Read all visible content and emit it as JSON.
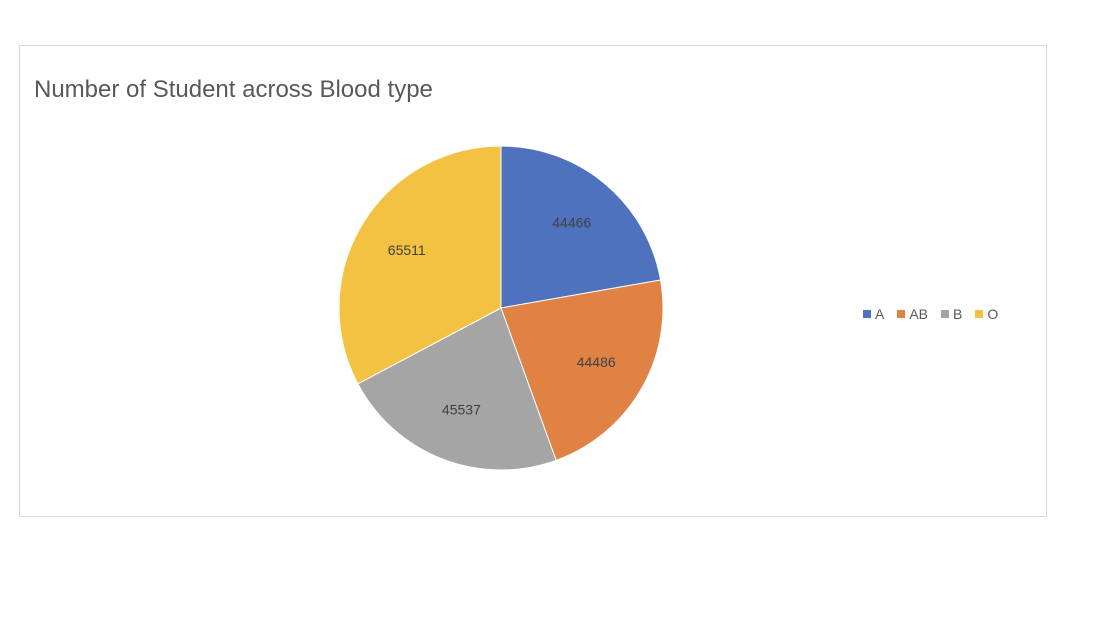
{
  "chart_data": {
    "type": "pie",
    "title": "Number of Student across Blood type",
    "categories": [
      "A",
      "AB",
      "B",
      "O"
    ],
    "values": [
      44466,
      44486,
      45537,
      65511
    ],
    "colors": [
      "#4e72be",
      "#df8244",
      "#a5a5a5",
      "#f4c242"
    ],
    "data_labels": [
      "44466",
      "44486",
      "45537",
      "65511"
    ],
    "legend_position": "right",
    "start_angle": "12 o'clock, clockwise"
  }
}
